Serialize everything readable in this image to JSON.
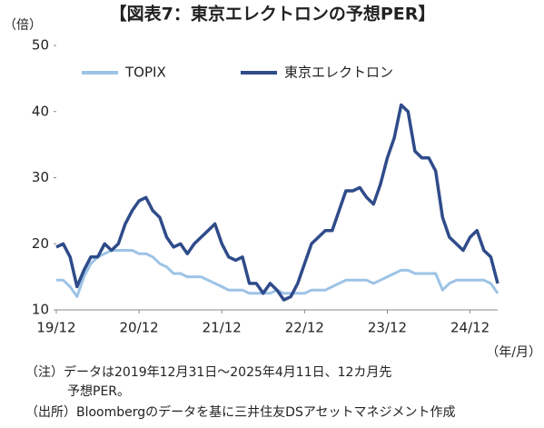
{
  "chart_data": {
    "type": "line",
    "title": "【図表7：東京エレクトロンの予想PER】",
    "y_label": "（倍）",
    "x_label": "（年/月）",
    "x": [
      "2019-12",
      "2020-01",
      "2020-02",
      "2020-03",
      "2020-04",
      "2020-05",
      "2020-06",
      "2020-07",
      "2020-08",
      "2020-09",
      "2020-10",
      "2020-11",
      "2020-12",
      "2021-01",
      "2021-02",
      "2021-03",
      "2021-04",
      "2021-05",
      "2021-06",
      "2021-07",
      "2021-08",
      "2021-09",
      "2021-10",
      "2021-11",
      "2021-12",
      "2022-01",
      "2022-02",
      "2022-03",
      "2022-04",
      "2022-05",
      "2022-06",
      "2022-07",
      "2022-08",
      "2022-09",
      "2022-10",
      "2022-11",
      "2022-12",
      "2023-01",
      "2023-02",
      "2023-03",
      "2023-04",
      "2023-05",
      "2023-06",
      "2023-07",
      "2023-08",
      "2023-09",
      "2023-10",
      "2023-11",
      "2023-12",
      "2024-01",
      "2024-02",
      "2024-03",
      "2024-04",
      "2024-05",
      "2024-06",
      "2024-07",
      "2024-08",
      "2024-09",
      "2024-10",
      "2024-11",
      "2024-12",
      "2025-01",
      "2025-02",
      "2025-03",
      "2025-04"
    ],
    "series": [
      {
        "name": "TOPIX",
        "color": "#9dc3e6",
        "values": [
          14.5,
          14.5,
          13.5,
          12,
          15,
          17,
          18,
          18.5,
          19,
          19,
          19,
          19,
          18.5,
          18.5,
          18,
          17,
          16.5,
          15.5,
          15.5,
          15,
          15,
          15,
          14.5,
          14,
          13.5,
          13,
          13,
          13,
          12.5,
          12.5,
          12.5,
          12.5,
          13,
          12.5,
          12.5,
          12.5,
          12.5,
          13,
          13,
          13,
          13.5,
          14,
          14.5,
          14.5,
          14.5,
          14.5,
          14,
          14.5,
          15,
          15.5,
          16,
          16,
          15.5,
          15.5,
          15.5,
          15.5,
          13,
          14,
          14.5,
          14.5,
          14.5,
          14.5,
          14.5,
          14,
          12.5
        ]
      },
      {
        "name": "東京エレクトロン",
        "color": "#2f4b8a",
        "values": [
          19.5,
          20,
          18,
          13.5,
          16,
          18,
          18,
          20,
          19,
          20,
          23,
          25,
          26.5,
          27,
          25,
          24,
          21,
          19.5,
          20,
          18.5,
          20,
          21,
          22,
          23,
          20,
          18,
          17.5,
          18,
          14,
          14,
          12.5,
          14,
          13,
          11.5,
          12,
          14,
          17,
          20,
          21,
          22,
          22,
          25,
          28,
          28,
          28.5,
          27,
          26,
          29,
          33,
          36,
          41,
          40,
          34,
          33,
          33,
          31,
          24,
          21,
          20,
          19,
          21,
          22,
          19,
          18,
          14
        ]
      }
    ],
    "xlim": [
      "2019-12",
      "2025-04"
    ],
    "xticks": [
      {
        "value": "2019-12",
        "label": "19/12"
      },
      {
        "value": "2020-12",
        "label": "20/12"
      },
      {
        "value": "2021-12",
        "label": "21/12"
      },
      {
        "value": "2022-12",
        "label": "22/12"
      },
      {
        "value": "2023-12",
        "label": "23/12"
      },
      {
        "value": "2024-12",
        "label": "24/12"
      }
    ],
    "ylim": [
      10,
      50
    ],
    "yticks": [
      10,
      20,
      30,
      40,
      50
    ],
    "legend": "top-left",
    "notes": [
      "（注）データは2019年12月31日～2025年4月11日、12カ月先",
      "予想PER。",
      "（出所）Bloombergのデータを基に三井住友DSアセットマネジメント作成"
    ]
  }
}
